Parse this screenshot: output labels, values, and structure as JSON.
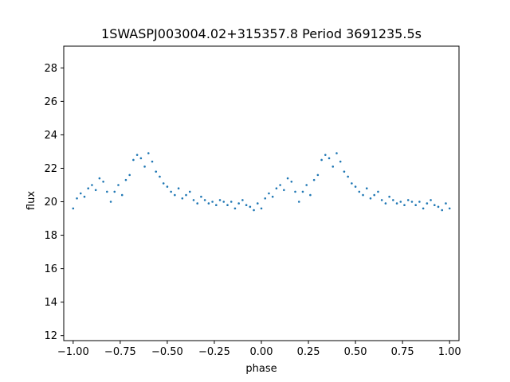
{
  "chart_data": {
    "type": "scatter",
    "title": "1SWASPJ003004.02+315357.8 Period 3691235.5s",
    "xlabel": "phase",
    "ylabel": "flux",
    "xlim": [
      -1.05,
      1.05
    ],
    "ylim": [
      11.7,
      29.3
    ],
    "xticks": [
      -1.0,
      -0.75,
      -0.5,
      -0.25,
      0.0,
      0.25,
      0.5,
      0.75,
      1.0
    ],
    "xtick_labels": [
      "−1.00",
      "−0.75",
      "−0.50",
      "−0.25",
      "0.00",
      "0.25",
      "0.50",
      "0.75",
      "1.00"
    ],
    "yticks": [
      12,
      14,
      16,
      18,
      20,
      22,
      24,
      26,
      28
    ],
    "ytick_labels": [
      "12",
      "14",
      "16",
      "18",
      "20",
      "22",
      "24",
      "26",
      "28"
    ],
    "grid": false,
    "color": "#1f77b4",
    "series": [
      {
        "x": [
          -1.0,
          -0.98,
          -0.96,
          -0.94,
          -0.92,
          -0.9,
          -0.88,
          -0.86,
          -0.84,
          -0.82,
          -0.8,
          -0.78,
          -0.76,
          -0.74,
          -0.72,
          -0.7,
          -0.68,
          -0.66,
          -0.64,
          -0.62,
          -0.6,
          -0.58,
          -0.56,
          -0.54,
          -0.52,
          -0.5,
          -0.48,
          -0.46,
          -0.44,
          -0.42,
          -0.4,
          -0.38,
          -0.36,
          -0.34,
          -0.32,
          -0.3,
          -0.28,
          -0.26,
          -0.24,
          -0.22,
          -0.2,
          -0.18,
          -0.16,
          -0.14,
          -0.12,
          -0.1,
          -0.08,
          -0.06,
          -0.04,
          -0.02,
          0.0,
          0.02,
          0.04,
          0.06,
          0.08,
          0.1,
          0.12,
          0.14,
          0.16,
          0.18,
          0.2,
          0.22,
          0.24,
          0.26,
          0.28,
          0.3,
          0.32,
          0.34,
          0.36,
          0.38,
          0.4,
          0.42,
          0.44,
          0.46,
          0.48,
          0.5,
          0.52,
          0.54,
          0.56,
          0.58,
          0.6,
          0.62,
          0.64,
          0.66,
          0.68,
          0.7,
          0.72,
          0.74,
          0.76,
          0.78,
          0.8,
          0.82,
          0.84,
          0.86,
          0.88,
          0.9,
          0.92,
          0.94,
          0.96,
          0.98,
          1.0
        ],
        "y": [
          19.6,
          20.2,
          20.5,
          20.3,
          20.8,
          21.0,
          20.7,
          21.4,
          21.2,
          20.6,
          20.0,
          20.6,
          21.0,
          20.4,
          21.3,
          21.6,
          22.5,
          22.8,
          22.6,
          22.1,
          22.9,
          22.4,
          21.8,
          21.5,
          21.1,
          20.9,
          20.6,
          20.4,
          20.8,
          20.2,
          20.4,
          20.6,
          20.1,
          19.9,
          20.3,
          20.1,
          19.9,
          20.0,
          19.8,
          20.1,
          20.0,
          19.8,
          20.0,
          19.6,
          19.9,
          20.1,
          19.8,
          19.7,
          19.5,
          19.9,
          19.6,
          20.2,
          20.5,
          20.3,
          20.8,
          21.0,
          20.7,
          21.4,
          21.2,
          20.6,
          20.0,
          20.6,
          21.0,
          20.4,
          21.3,
          21.6,
          22.5,
          22.8,
          22.6,
          22.1,
          22.9,
          22.4,
          21.8,
          21.5,
          21.1,
          20.9,
          20.6,
          20.4,
          20.8,
          20.2,
          20.4,
          20.6,
          20.1,
          19.9,
          20.3,
          20.1,
          19.9,
          20.0,
          19.8,
          20.1,
          20.0,
          19.8,
          20.0,
          19.6,
          19.9,
          20.1,
          19.8,
          19.7,
          19.5,
          19.9,
          19.6
        ]
      }
    ]
  }
}
